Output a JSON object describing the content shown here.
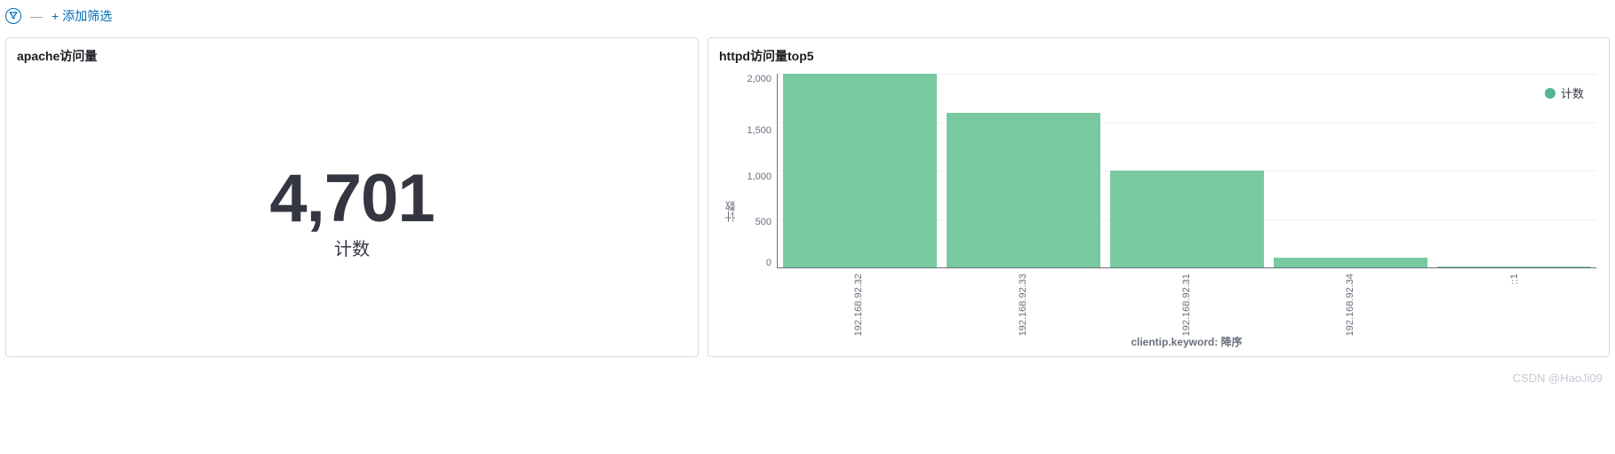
{
  "filter_bar": {
    "dash": "—",
    "add_filter_label": "+ 添加筛选"
  },
  "panels": {
    "metric": {
      "title": "apache访问量",
      "value": "4,701",
      "label": "计数"
    },
    "chart": {
      "title": "httpd访问量top5",
      "type": "bar",
      "y_axis_title": "计数",
      "x_axis_title": "clientip.keyword: 降序",
      "ylim_max": 2000,
      "y_ticks": [
        "2,000",
        "1,500",
        "1,000",
        "500",
        "0"
      ],
      "bar_color": "#79c9a0",
      "grid_color": "#eef0f4",
      "axis_color": "#69707d",
      "legend_label": "计数",
      "legend_color": "#54b399",
      "categories": [
        "192.168.92.32",
        "192.168.92.33",
        "192.168.92.31",
        "192.168.92.34",
        "::1"
      ],
      "values": [
        2000,
        1600,
        1000,
        100,
        1
      ]
    }
  },
  "watermark": "CSDN @HaoJi09"
}
